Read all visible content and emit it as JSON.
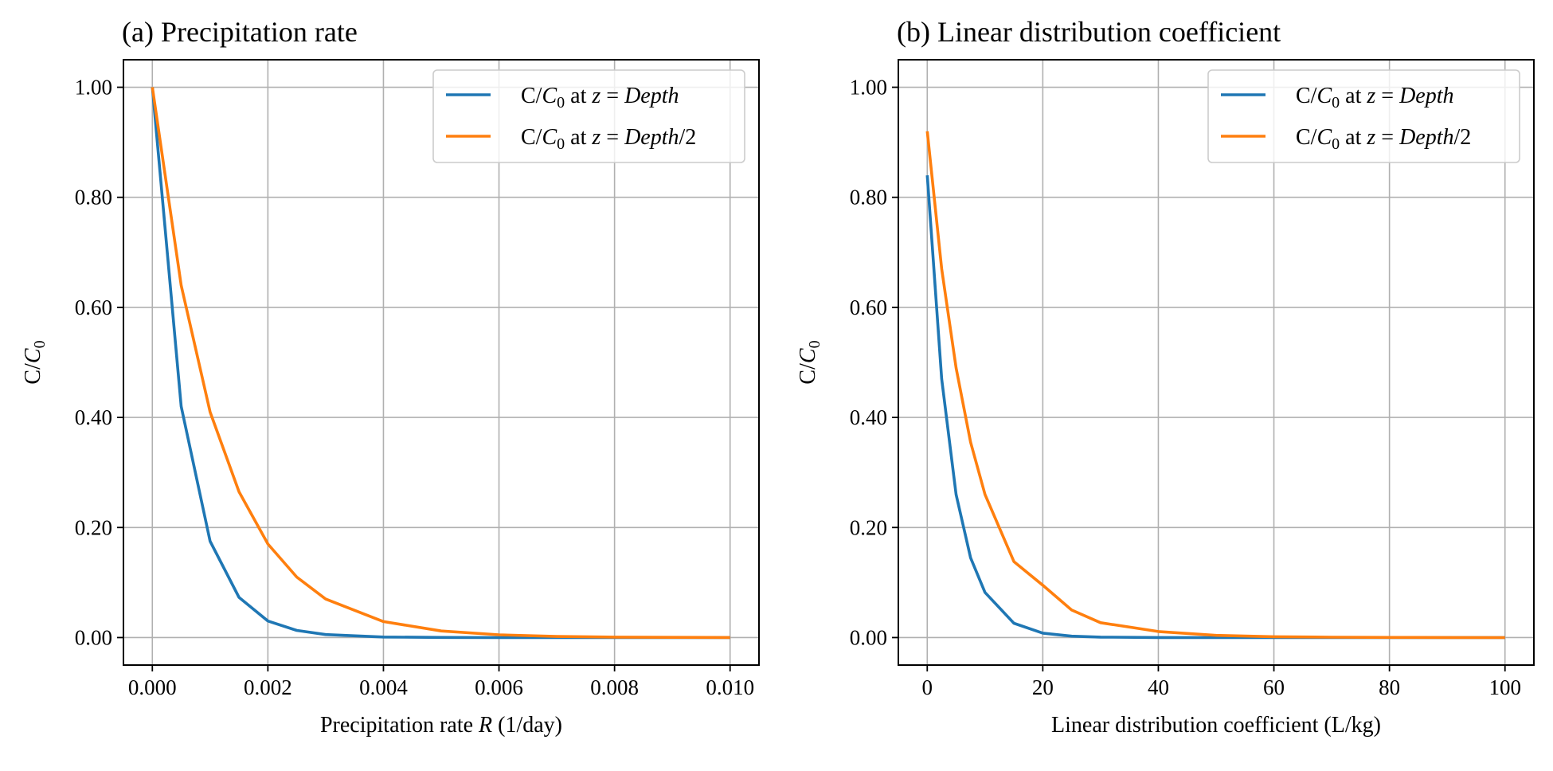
{
  "chart_data": [
    {
      "type": "line",
      "title": "(a) Precipitation rate",
      "xlabel": {
        "main": "Precipitation rate ",
        "var": "R",
        "unit": " (1/day)"
      },
      "ylabel": {
        "c": "C/",
        "var": "C",
        "sub": "0"
      },
      "xlim": [
        -0.0005,
        0.0105
      ],
      "ylim": [
        -0.05,
        1.05
      ],
      "xticks": [
        0,
        0.002,
        0.004,
        0.006,
        0.008,
        0.01
      ],
      "xtick_labels": [
        "0.000",
        "0.002",
        "0.004",
        "0.006",
        "0.008",
        "0.010"
      ],
      "yticks": [
        0,
        0.2,
        0.4,
        0.6,
        0.8,
        1.0
      ],
      "ytick_labels": [
        "0.00",
        "0.20",
        "0.40",
        "0.60",
        "0.80",
        "1.00"
      ],
      "grid": true,
      "legend_position": "top-right",
      "colors": [
        "#1f77b4",
        "#ff7f0e"
      ],
      "legend": [
        {
          "c": "C/",
          "var": "C",
          "sub": "0",
          "at": " at ",
          "z": "z",
          "eq": " = ",
          "loc": "Depth",
          "suffix": ""
        },
        {
          "c": "C/",
          "var": "C",
          "sub": "0",
          "at": " at ",
          "z": "z",
          "eq": " = ",
          "loc": "Depth",
          "suffix": "/2"
        }
      ],
      "x": [
        0,
        0.0005,
        0.001,
        0.0015,
        0.002,
        0.0025,
        0.003,
        0.004,
        0.005,
        0.006,
        0.007,
        0.008,
        0.009,
        0.01
      ],
      "series": [
        {
          "values": [
            1.0,
            0.42,
            0.175,
            0.073,
            0.03,
            0.013,
            0.0055,
            0.001,
            0.0002,
            0.0,
            0.0,
            0.0,
            0.0,
            0.0
          ]
        },
        {
          "values": [
            1.0,
            0.64,
            0.41,
            0.265,
            0.17,
            0.11,
            0.07,
            0.029,
            0.012,
            0.005,
            0.002,
            0.0008,
            0.0003,
            0.0001
          ]
        }
      ]
    },
    {
      "type": "line",
      "title": "(b) Linear distribution coefficient",
      "xlabel": {
        "main": "Linear distribution coefficient (L/kg)",
        "var": "",
        "unit": ""
      },
      "ylabel": {
        "c": "C/",
        "var": "C",
        "sub": "0"
      },
      "xlim": [
        -5,
        105
      ],
      "ylim": [
        -0.05,
        1.05
      ],
      "xticks": [
        0,
        20,
        40,
        60,
        80,
        100
      ],
      "xtick_labels": [
        "0",
        "20",
        "40",
        "60",
        "80",
        "100"
      ],
      "yticks": [
        0,
        0.2,
        0.4,
        0.6,
        0.8,
        1.0
      ],
      "ytick_labels": [
        "0.00",
        "0.20",
        "0.40",
        "0.60",
        "0.80",
        "1.00"
      ],
      "grid": true,
      "legend_position": "top-right",
      "colors": [
        "#1f77b4",
        "#ff7f0e"
      ],
      "legend": [
        {
          "c": "C/",
          "var": "C",
          "sub": "0",
          "at": " at ",
          "z": "z",
          "eq": " = ",
          "loc": "Depth",
          "suffix": ""
        },
        {
          "c": "C/",
          "var": "C",
          "sub": "0",
          "at": " at ",
          "z": "z",
          "eq": " = ",
          "loc": "Depth",
          "suffix": "/2"
        }
      ],
      "x": [
        0,
        2.5,
        5,
        7.5,
        10,
        15,
        20,
        25,
        30,
        40,
        50,
        60,
        70,
        80,
        90,
        100
      ],
      "series": [
        {
          "values": [
            0.84,
            0.47,
            0.26,
            0.145,
            0.082,
            0.026,
            0.008,
            0.0026,
            0.0008,
            0.0001,
            0.0,
            0.0,
            0.0,
            0.0,
            0.0,
            0.0
          ]
        },
        {
          "values": [
            0.92,
            0.67,
            0.49,
            0.355,
            0.26,
            0.138,
            0.095,
            0.05,
            0.027,
            0.011,
            0.004,
            0.0015,
            0.0006,
            0.0002,
            0.0001,
            0.0
          ]
        }
      ]
    }
  ]
}
